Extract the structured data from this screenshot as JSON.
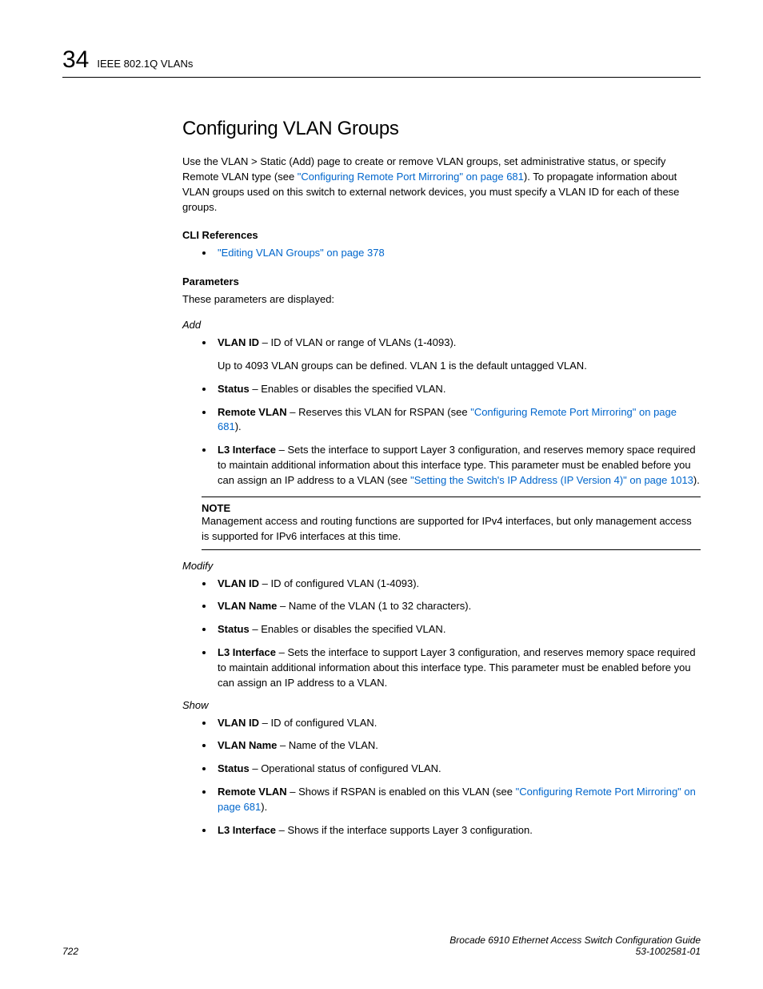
{
  "header": {
    "chapter_num": "34",
    "text": "IEEE 802.1Q VLANs"
  },
  "title": "Configuring VLAN Groups",
  "intro": {
    "p1a": "Use the VLAN > Static (Add) page to create or remove VLAN groups, set administrative status, or specify Remote VLAN type (see ",
    "link1": "\"Configuring Remote Port Mirroring\" on page 681",
    "p1b": "). To propagate information about VLAN groups used on this switch to external network devices, you must specify a VLAN ID for each of these groups."
  },
  "cli": {
    "heading": "CLI References",
    "item": "\"Editing VLAN Groups\" on page 378"
  },
  "params": {
    "heading": "Parameters",
    "intro": "These parameters are displayed:"
  },
  "add": {
    "label": "Add",
    "vlan_id": {
      "term": "VLAN ID",
      "text": " – ID of VLAN or range of VLANs (1-4093).",
      "sub": "Up to 4093 VLAN groups can be defined. VLAN 1 is the default untagged VLAN."
    },
    "status": {
      "term": "Status",
      "text": " – Enables or disables the specified VLAN."
    },
    "remote": {
      "term": "Remote VLAN",
      "text_a": " – Reserves this VLAN for RSPAN (see ",
      "link": "\"Configuring Remote Port Mirroring\" on page 681",
      "text_b": ")."
    },
    "l3": {
      "term": "L3 Interface",
      "text_a": " – Sets the interface to support Layer 3 configuration, and reserves memory space required to maintain additional information about this interface type. This parameter must be enabled before you can assign an IP address to a VLAN (see ",
      "link": "\"Setting the Switch's IP Address (IP Version 4)\" on page 1013",
      "text_b": ")."
    }
  },
  "note": {
    "label": "NOTE",
    "text": "Management access and routing functions are supported for IPv4 interfaces, but only management access is supported for IPv6 interfaces at this time."
  },
  "modify": {
    "label": "Modify",
    "vlan_id": {
      "term": "VLAN ID",
      "text": " – ID of configured VLAN (1-4093)."
    },
    "vlan_name": {
      "term": "VLAN Name",
      "text": " – Name of the VLAN (1 to 32 characters)."
    },
    "status": {
      "term": "Status",
      "text": " – Enables or disables the specified VLAN."
    },
    "l3": {
      "term": "L3 Interface",
      "text": " – Sets the interface to support Layer 3 configuration, and reserves memory space required to maintain additional information about this interface type. This parameter must be enabled before you can assign an IP address to a VLAN."
    }
  },
  "show": {
    "label": "Show",
    "vlan_id": {
      "term": "VLAN ID",
      "text": " – ID of configured VLAN."
    },
    "vlan_name": {
      "term": "VLAN Name",
      "text": " – Name of the VLAN."
    },
    "status": {
      "term": "Status",
      "text": " – Operational status of configured VLAN."
    },
    "remote": {
      "term": "Remote VLAN",
      "text_a": " – Shows if RSPAN is enabled on this VLAN (see ",
      "link": "\"Configuring Remote Port Mirroring\" on page 681",
      "text_b": ")."
    },
    "l3": {
      "term": "L3 Interface",
      "text": " – Shows if the interface supports Layer 3 configuration."
    }
  },
  "footer": {
    "page": "722",
    "line1": "Brocade 6910 Ethernet Access Switch Configuration Guide",
    "line2": "53-1002581-01"
  },
  "colors": {
    "link": "#0066cc",
    "text": "#000000",
    "bg": "#ffffff"
  }
}
